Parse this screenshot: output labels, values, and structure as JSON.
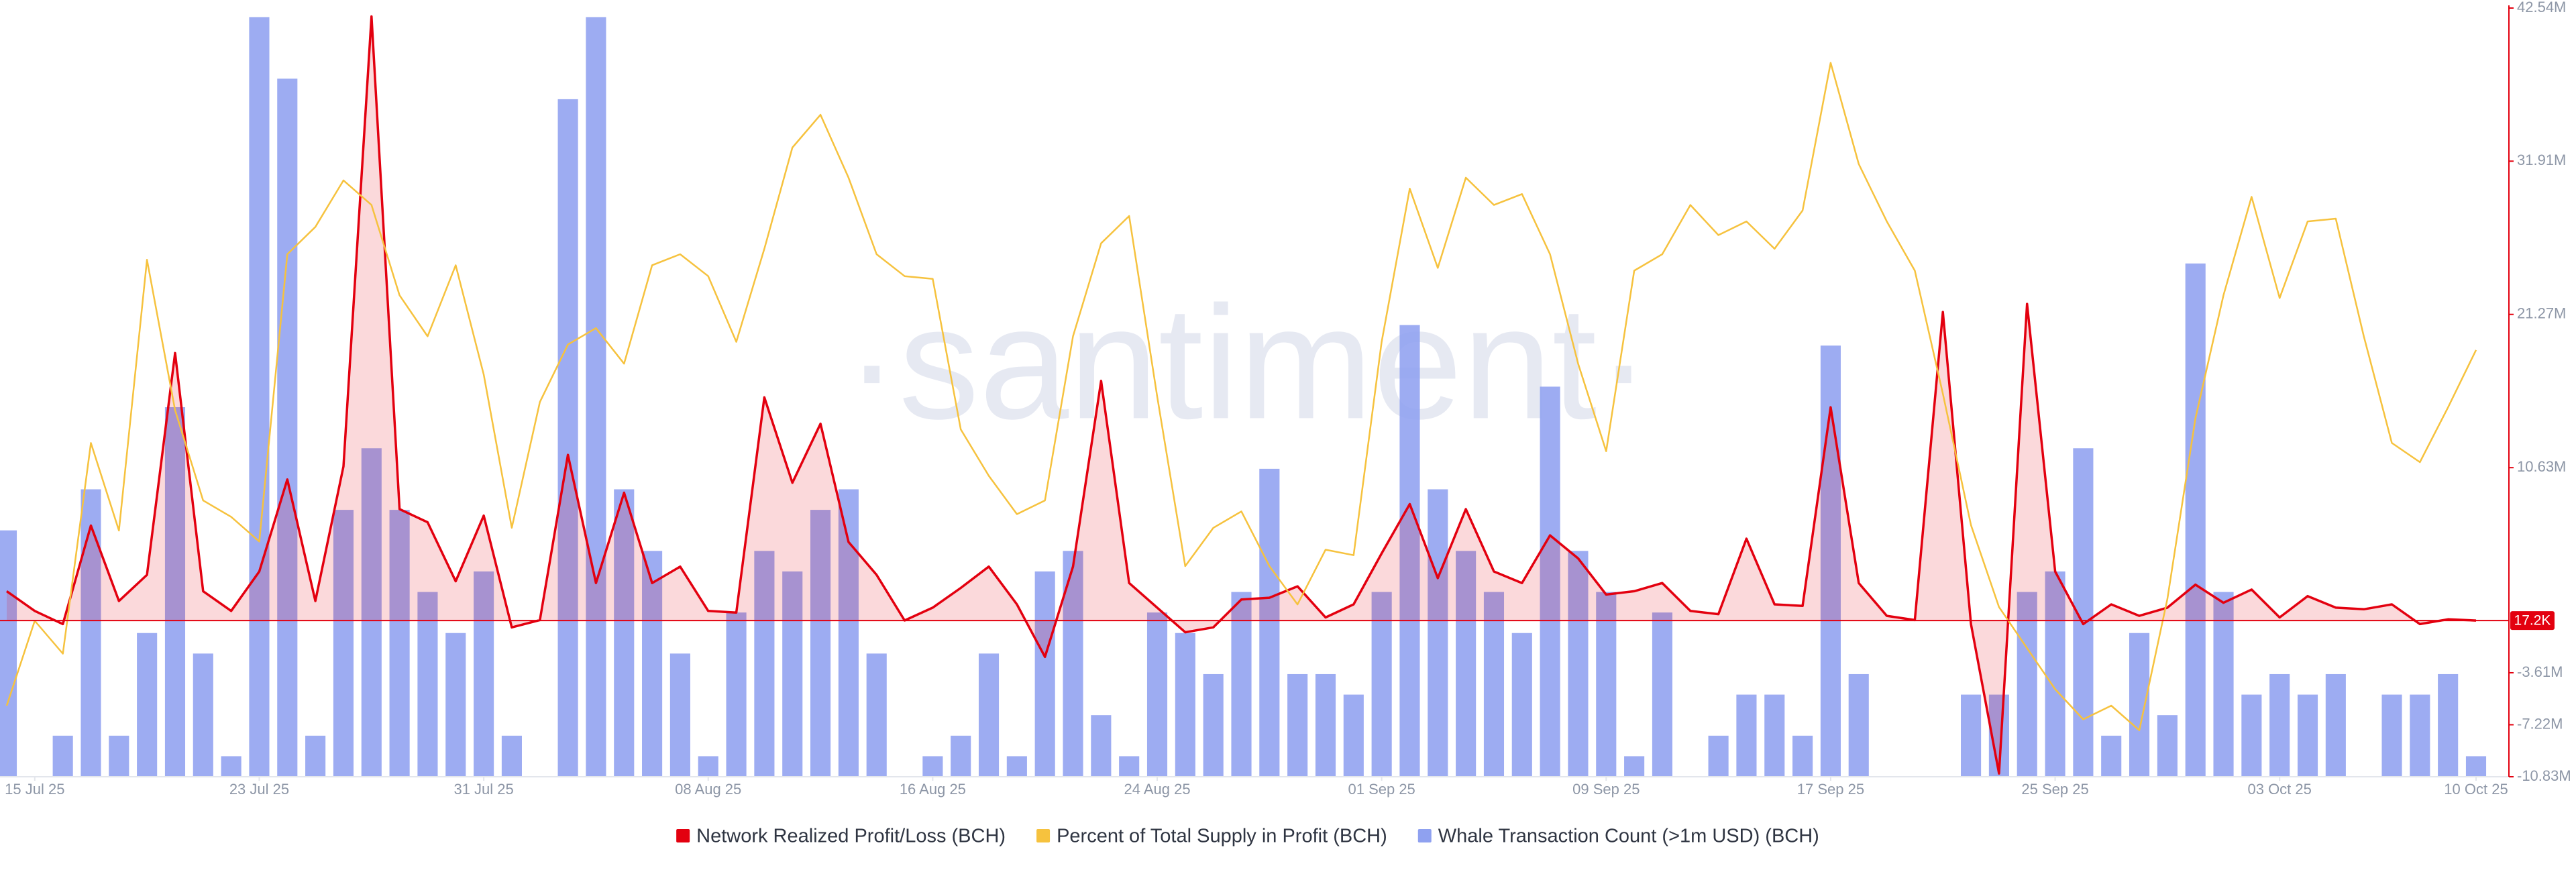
{
  "chart_data": {
    "type": "combo",
    "watermark": "·santiment·",
    "x": [
      "2025-07-14",
      "2025-07-15",
      "2025-07-16",
      "2025-07-17",
      "2025-07-18",
      "2025-07-19",
      "2025-07-20",
      "2025-07-21",
      "2025-07-22",
      "2025-07-23",
      "2025-07-24",
      "2025-07-25",
      "2025-07-26",
      "2025-07-27",
      "2025-07-28",
      "2025-07-29",
      "2025-07-30",
      "2025-07-31",
      "2025-08-01",
      "2025-08-02",
      "2025-08-03",
      "2025-08-04",
      "2025-08-05",
      "2025-08-06",
      "2025-08-07",
      "2025-08-08",
      "2025-08-09",
      "2025-08-10",
      "2025-08-11",
      "2025-08-12",
      "2025-08-13",
      "2025-08-14",
      "2025-08-15",
      "2025-08-16",
      "2025-08-17",
      "2025-08-18",
      "2025-08-19",
      "2025-08-20",
      "2025-08-21",
      "2025-08-22",
      "2025-08-23",
      "2025-08-24",
      "2025-08-25",
      "2025-08-26",
      "2025-08-27",
      "2025-08-28",
      "2025-08-29",
      "2025-08-30",
      "2025-08-31",
      "2025-09-01",
      "2025-09-02",
      "2025-09-03",
      "2025-09-04",
      "2025-09-05",
      "2025-09-06",
      "2025-09-07",
      "2025-09-08",
      "2025-09-09",
      "2025-09-10",
      "2025-09-11",
      "2025-09-12",
      "2025-09-13",
      "2025-09-14",
      "2025-09-15",
      "2025-09-16",
      "2025-09-17",
      "2025-09-18",
      "2025-09-19",
      "2025-09-20",
      "2025-09-21",
      "2025-09-22",
      "2025-09-23",
      "2025-09-24",
      "2025-09-25",
      "2025-09-26",
      "2025-09-27",
      "2025-09-28",
      "2025-09-29",
      "2025-09-30",
      "2025-10-01",
      "2025-10-02",
      "2025-10-03",
      "2025-10-04",
      "2025-10-05",
      "2025-10-06",
      "2025-10-07",
      "2025-10-08",
      "2025-10-09",
      "2025-10-10"
    ],
    "xticks": [
      {
        "value": "2025-07-15",
        "label": "15 Jul 25"
      },
      {
        "value": "2025-07-23",
        "label": "23 Jul 25"
      },
      {
        "value": "2025-07-31",
        "label": "31 Jul 25"
      },
      {
        "value": "2025-08-08",
        "label": "08 Aug 25"
      },
      {
        "value": "2025-08-16",
        "label": "16 Aug 25"
      },
      {
        "value": "2025-08-24",
        "label": "24 Aug 25"
      },
      {
        "value": "2025-09-01",
        "label": "01 Sep 25"
      },
      {
        "value": "2025-09-09",
        "label": "09 Sep 25"
      },
      {
        "value": "2025-09-17",
        "label": "17 Sep 25"
      },
      {
        "value": "2025-09-25",
        "label": "25 Sep 25"
      },
      {
        "value": "2025-10-03",
        "label": "03 Oct 25"
      },
      {
        "value": "2025-10-10",
        "label": "10 Oct 25"
      }
    ],
    "ylim": [
      -10830000,
      42540000
    ],
    "yticks": [
      {
        "value": 42540000,
        "label": "42.54M"
      },
      {
        "value": 31910000,
        "label": "31.91M"
      },
      {
        "value": 21270000,
        "label": "21.27M"
      },
      {
        "value": 10630000,
        "label": "10.63M"
      },
      {
        "value": -3610000,
        "label": "-3.61M"
      },
      {
        "value": -7220000,
        "label": "-7.22M"
      },
      {
        "value": -10830000,
        "label": "-10.83M"
      }
    ],
    "y2lim": [
      43.2,
      99.4
    ],
    "y3lim": [
      0,
      37.44
    ],
    "series": [
      {
        "name": "Network Realized Profit/Loss (BCH)",
        "type": "line",
        "fill": true,
        "color": "#e3000f",
        "current_value": {
          "value": 17200,
          "label": "17.2K"
        },
        "values": [
          2050000,
          680000,
          -230000,
          6610000,
          1370000,
          3190000,
          18590000,
          2050000,
          680000,
          3420000,
          9810000,
          1370000,
          10720000,
          41960000,
          7750000,
          6840000,
          2740000,
          7300000,
          -460000,
          50000,
          11520000,
          2620000,
          8890000,
          2620000,
          3760000,
          680000,
          570000,
          15510000,
          9580000,
          13680000,
          5470000,
          3190000,
          20000,
          910000,
          2280000,
          3760000,
          1140000,
          -2510000,
          3760000,
          16650000,
          2620000,
          910000,
          -800000,
          -460000,
          1480000,
          1600000,
          2390000,
          230000,
          1140000,
          4680000,
          8100000,
          2960000,
          7750000,
          3420000,
          2620000,
          5930000,
          4330000,
          1820000,
          2050000,
          2620000,
          680000,
          460000,
          5700000,
          1140000,
          1030000,
          14820000,
          2620000,
          340000,
          50000,
          21440000,
          -230000,
          -10600000,
          22000000,
          3420000,
          -230000,
          1140000,
          340000,
          910000,
          2510000,
          1250000,
          2170000,
          230000,
          1710000,
          910000,
          800000,
          1140000,
          -230000,
          100000,
          17200
        ]
      },
      {
        "name": "Percent of Total Supply in Profit (BCH)",
        "type": "line",
        "axis": "y2",
        "color": "#f6c23e",
        "values": [
          48.4,
          54.6,
          52.2,
          67.6,
          61.2,
          81.0,
          70.0,
          63.4,
          62.2,
          60.4,
          81.4,
          83.4,
          86.8,
          85.0,
          78.4,
          75.4,
          80.6,
          72.6,
          61.4,
          70.6,
          74.8,
          76.0,
          73.4,
          80.6,
          81.4,
          79.8,
          75.0,
          81.8,
          89.2,
          91.6,
          87.0,
          81.4,
          79.8,
          79.6,
          68.6,
          65.2,
          62.4,
          63.4,
          75.4,
          82.2,
          84.2,
          71.0,
          58.6,
          61.4,
          62.6,
          58.6,
          55.8,
          59.8,
          59.4,
          75.0,
          86.2,
          80.4,
          87.0,
          85.0,
          85.8,
          81.4,
          73.4,
          67.0,
          80.2,
          81.4,
          85.0,
          82.8,
          83.8,
          81.8,
          84.6,
          95.4,
          88.0,
          83.8,
          80.2,
          71.2,
          61.6,
          55.6,
          52.6,
          49.6,
          47.4,
          48.4,
          46.6,
          56.2,
          69.4,
          78.4,
          85.6,
          78.2,
          83.8,
          84.0,
          75.4,
          67.6,
          66.2,
          70.2,
          74.4
        ]
      },
      {
        "name": "Whale Transaction Count (>1m USD) (BCH)",
        "type": "bar",
        "axis": "y3",
        "color": "#8fa1f0",
        "values": [
          12,
          0,
          2,
          14,
          2,
          7,
          18,
          6,
          1,
          37,
          34,
          2,
          13,
          16,
          13,
          9,
          7,
          10,
          2,
          0,
          33,
          37,
          14,
          11,
          6,
          1,
          8,
          11,
          10,
          13,
          14,
          6,
          0,
          1,
          2,
          6,
          1,
          10,
          11,
          3,
          1,
          8,
          7,
          5,
          9,
          15,
          5,
          5,
          4,
          9,
          22,
          14,
          11,
          9,
          7,
          19,
          11,
          9,
          1,
          8,
          0,
          2,
          4,
          4,
          2,
          21,
          5,
          0,
          0,
          0,
          4,
          4,
          9,
          10,
          16,
          2,
          7,
          3,
          25,
          9,
          4,
          5,
          4,
          5,
          0,
          4,
          4,
          5,
          1
        ]
      }
    ]
  }
}
